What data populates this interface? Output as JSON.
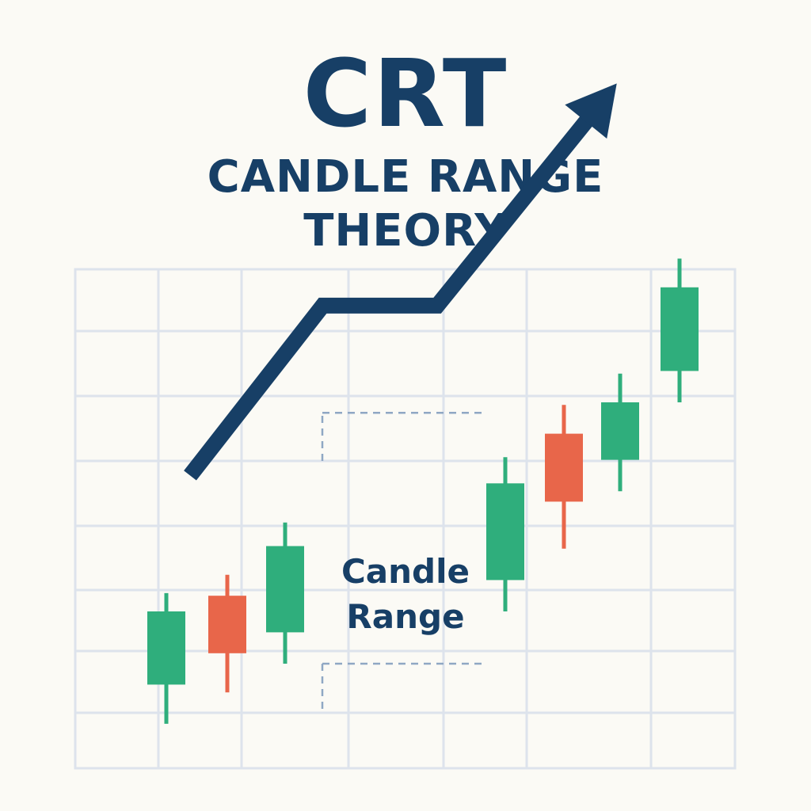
{
  "title": "CRT",
  "subtitle_line1": "CANDLE RANGE",
  "subtitle_line2": "THEORY",
  "colors": {
    "background": "#fbfaf5",
    "navy": "#173f66",
    "bullish": "#2fae7c",
    "bearish": "#e8664a",
    "grid": "#dde3ec",
    "dashed": "#8fa7c4"
  },
  "chart_data": {
    "type": "candlestick",
    "candles": [
      {
        "open": 1.6,
        "close": 3.0,
        "high": 3.35,
        "low": 0.85,
        "direction": "bullish"
      },
      {
        "open": 3.3,
        "close": 2.2,
        "high": 3.7,
        "low": 1.45,
        "direction": "bearish"
      },
      {
        "open": 2.6,
        "close": 4.25,
        "high": 4.7,
        "low": 2.0,
        "direction": "bullish"
      },
      {
        "open": 3.6,
        "close": 5.45,
        "high": 5.95,
        "low": 3.0,
        "direction": "bullish"
      },
      {
        "open": 6.4,
        "close": 5.1,
        "high": 6.95,
        "low": 4.2,
        "direction": "bearish"
      },
      {
        "open": 5.9,
        "close": 7.0,
        "high": 7.55,
        "low": 5.3,
        "direction": "bullish"
      },
      {
        "open": 7.6,
        "close": 9.2,
        "high": 9.75,
        "low": 7.0,
        "direction": "bullish"
      }
    ],
    "trend_arrow": {
      "points": [
        [
          0.35,
          5.6
        ],
        [
          2.9,
          8.85
        ],
        [
          5.1,
          8.85
        ],
        [
          8.55,
          13.1
        ]
      ],
      "color": "#173f66"
    },
    "range": {
      "label_line1": "Candle",
      "label_line2": "Range",
      "high": 6.8,
      "low": 2.0
    },
    "ylim": [
      0,
      13.5
    ],
    "grid": true
  }
}
